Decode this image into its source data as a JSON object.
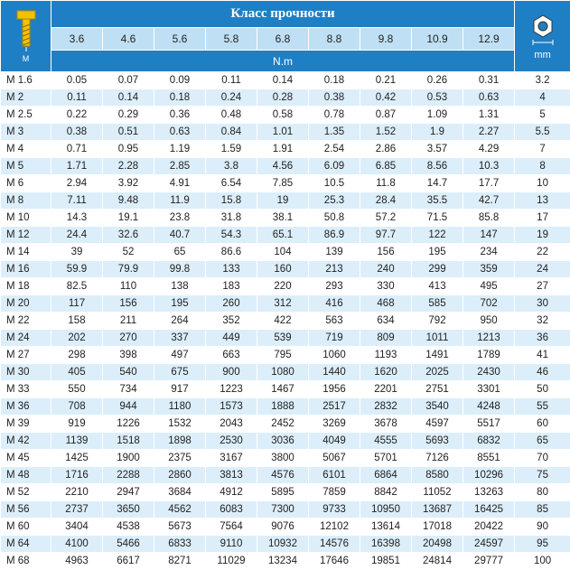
{
  "header": {
    "title": "Класс прочности",
    "unit": "N.m",
    "left_icon_label": "M",
    "right_icon_label": "mm",
    "classes": [
      "3.6",
      "4.6",
      "5.6",
      "5.8",
      "6.8",
      "8.8",
      "9.8",
      "10.9",
      "12.9"
    ]
  },
  "colors": {
    "header_blue": "#1f7fc4",
    "light_blue": "#bfe0f4",
    "row_alt": "#dceefa",
    "icon_yellow": "#f2c200"
  },
  "icons": {
    "left": "bolt-icon",
    "right": "hex-nut-icon"
  },
  "rows": [
    {
      "size": "M 1.6",
      "values": [
        "0.05",
        "0.07",
        "0.09",
        "0.11",
        "0.14",
        "0.18",
        "0.21",
        "0.26",
        "0.31"
      ],
      "mm": "3.2"
    },
    {
      "size": "M 2",
      "values": [
        "0.11",
        "0.14",
        "0.18",
        "0.24",
        "0.28",
        "0.38",
        "0.42",
        "0.53",
        "0.63"
      ],
      "mm": "4"
    },
    {
      "size": "M 2.5",
      "values": [
        "0.22",
        "0.29",
        "0.36",
        "0.48",
        "0.58",
        "0.78",
        "0.87",
        "1.09",
        "1.31"
      ],
      "mm": "5"
    },
    {
      "size": "M 3",
      "values": [
        "0.38",
        "0.51",
        "0.63",
        "0.84",
        "1.01",
        "1.35",
        "1.52",
        "1.9",
        "2.27"
      ],
      "mm": "5.5"
    },
    {
      "size": "M 4",
      "values": [
        "0.71",
        "0.95",
        "1.19",
        "1.59",
        "1.91",
        "2.54",
        "2.86",
        "3.57",
        "4.29"
      ],
      "mm": "7"
    },
    {
      "size": "M 5",
      "values": [
        "1.71",
        "2.28",
        "2.85",
        "3.8",
        "4.56",
        "6.09",
        "6.85",
        "8.56",
        "10.3"
      ],
      "mm": "8"
    },
    {
      "size": "M 6",
      "values": [
        "2.94",
        "3.92",
        "4.91",
        "6.54",
        "7.85",
        "10.5",
        "11.8",
        "14.7",
        "17.7"
      ],
      "mm": "10"
    },
    {
      "size": "M 8",
      "values": [
        "7.11",
        "9.48",
        "11.9",
        "15.8",
        "19",
        "25.3",
        "28.4",
        "35.5",
        "42.7"
      ],
      "mm": "13"
    },
    {
      "size": "M 10",
      "values": [
        "14.3",
        "19.1",
        "23.8",
        "31.8",
        "38.1",
        "50.8",
        "57.2",
        "71.5",
        "85.8"
      ],
      "mm": "17"
    },
    {
      "size": "M 12",
      "values": [
        "24.4",
        "32.6",
        "40.7",
        "54.3",
        "65.1",
        "86.9",
        "97.7",
        "122",
        "147"
      ],
      "mm": "19"
    },
    {
      "size": "M 14",
      "values": [
        "39",
        "52",
        "65",
        "86.6",
        "104",
        "139",
        "156",
        "195",
        "234"
      ],
      "mm": "22"
    },
    {
      "size": "M 16",
      "values": [
        "59.9",
        "79.9",
        "99.8",
        "133",
        "160",
        "213",
        "240",
        "299",
        "359"
      ],
      "mm": "24"
    },
    {
      "size": "M 18",
      "values": [
        "82.5",
        "110",
        "138",
        "183",
        "220",
        "293",
        "330",
        "413",
        "495"
      ],
      "mm": "27"
    },
    {
      "size": "M 20",
      "values": [
        "117",
        "156",
        "195",
        "260",
        "312",
        "416",
        "468",
        "585",
        "702"
      ],
      "mm": "30"
    },
    {
      "size": "M 22",
      "values": [
        "158",
        "211",
        "264",
        "352",
        "422",
        "563",
        "634",
        "792",
        "950"
      ],
      "mm": "32"
    },
    {
      "size": "M 24",
      "values": [
        "202",
        "270",
        "337",
        "449",
        "539",
        "719",
        "809",
        "1011",
        "1213"
      ],
      "mm": "36"
    },
    {
      "size": "M 27",
      "values": [
        "298",
        "398",
        "497",
        "663",
        "795",
        "1060",
        "1193",
        "1491",
        "1789"
      ],
      "mm": "41"
    },
    {
      "size": "M 30",
      "values": [
        "405",
        "540",
        "675",
        "900",
        "1080",
        "1440",
        "1620",
        "2025",
        "2430"
      ],
      "mm": "46"
    },
    {
      "size": "M 33",
      "values": [
        "550",
        "734",
        "917",
        "1223",
        "1467",
        "1956",
        "2201",
        "2751",
        "3301"
      ],
      "mm": "50"
    },
    {
      "size": "M 36",
      "values": [
        "708",
        "944",
        "1180",
        "1573",
        "1888",
        "2517",
        "2832",
        "3540",
        "4248"
      ],
      "mm": "55"
    },
    {
      "size": "M 39",
      "values": [
        "919",
        "1226",
        "1532",
        "2043",
        "2452",
        "3269",
        "3678",
        "4597",
        "5517"
      ],
      "mm": "60"
    },
    {
      "size": "M 42",
      "values": [
        "1139",
        "1518",
        "1898",
        "2530",
        "3036",
        "4049",
        "4555",
        "5693",
        "6832"
      ],
      "mm": "65"
    },
    {
      "size": "M 45",
      "values": [
        "1425",
        "1900",
        "2375",
        "3167",
        "3800",
        "5067",
        "5701",
        "7126",
        "8551"
      ],
      "mm": "70"
    },
    {
      "size": "M 48",
      "values": [
        "1716",
        "2288",
        "2860",
        "3813",
        "4576",
        "6101",
        "6864",
        "8580",
        "10296"
      ],
      "mm": "75"
    },
    {
      "size": "M 52",
      "values": [
        "2210",
        "2947",
        "3684",
        "4912",
        "5895",
        "7859",
        "8842",
        "11052",
        "13263"
      ],
      "mm": "80"
    },
    {
      "size": "M 56",
      "values": [
        "2737",
        "3650",
        "4562",
        "6083",
        "7300",
        "9733",
        "10950",
        "13687",
        "16425"
      ],
      "mm": "85"
    },
    {
      "size": "M 60",
      "values": [
        "3404",
        "4538",
        "5673",
        "7564",
        "9076",
        "12102",
        "13614",
        "17018",
        "20422"
      ],
      "mm": "90"
    },
    {
      "size": "M 64",
      "values": [
        "4100",
        "5466",
        "6833",
        "9110",
        "10932",
        "14576",
        "16398",
        "20498",
        "24597"
      ],
      "mm": "95"
    },
    {
      "size": "M 68",
      "values": [
        "4963",
        "6617",
        "8271",
        "11029",
        "13234",
        "17646",
        "19851",
        "24814",
        "29777"
      ],
      "mm": "100"
    }
  ]
}
